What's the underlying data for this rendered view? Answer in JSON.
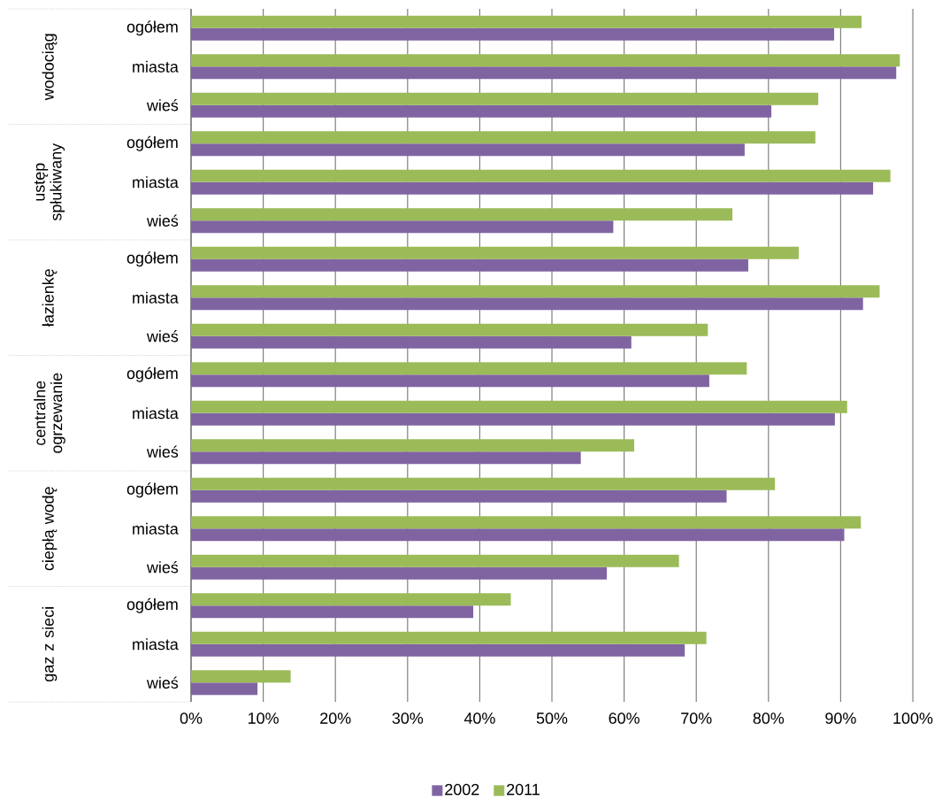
{
  "chart_data": {
    "type": "bar",
    "orientation": "horizontal",
    "categories": [
      "ogółem",
      "miasta",
      "wieś",
      "ogółem",
      "miasta",
      "wieś",
      "ogółem",
      "miasta",
      "wieś",
      "ogółem",
      "miasta",
      "wieś",
      "ogółem",
      "miasta",
      "wieś",
      "ogółem",
      "miasta",
      "wieś"
    ],
    "series": [
      {
        "name": "2002",
        "color": "#8064a2",
        "values": [
          89.1,
          97.7,
          80.4,
          76.7,
          94.5,
          58.5,
          77.2,
          93.1,
          61.0,
          71.8,
          89.2,
          54.0,
          74.2,
          90.5,
          57.6,
          39.1,
          68.4,
          9.2
        ]
      },
      {
        "name": "2011",
        "color": "#9bbb59",
        "values": [
          92.9,
          98.2,
          86.9,
          86.5,
          96.9,
          75.0,
          84.2,
          95.4,
          71.6,
          77.0,
          90.9,
          61.4,
          80.9,
          92.8,
          67.6,
          44.3,
          71.4,
          13.8
        ]
      }
    ],
    "annotations": [
      "wodociąg",
      "ustęp spłukiwany",
      "łazienkę",
      "centralne ogrzewanie",
      "ciepłą wodę",
      "gaz z sieci"
    ],
    "xlim": [
      0,
      100
    ],
    "xticks": [
      {
        "value": 0,
        "label": "0%"
      },
      {
        "value": 10,
        "label": "10%"
      },
      {
        "value": 20,
        "label": "20%"
      },
      {
        "value": 30,
        "label": "30%"
      },
      {
        "value": 40,
        "label": "40%"
      },
      {
        "value": 50,
        "label": "50%"
      },
      {
        "value": 60,
        "label": "60%"
      },
      {
        "value": 70,
        "label": "70%"
      },
      {
        "value": 80,
        "label": "80%"
      },
      {
        "value": 90,
        "label": "90%"
      },
      {
        "value": 100,
        "label": "100%"
      }
    ],
    "grid": "x",
    "legend": "bottom"
  }
}
